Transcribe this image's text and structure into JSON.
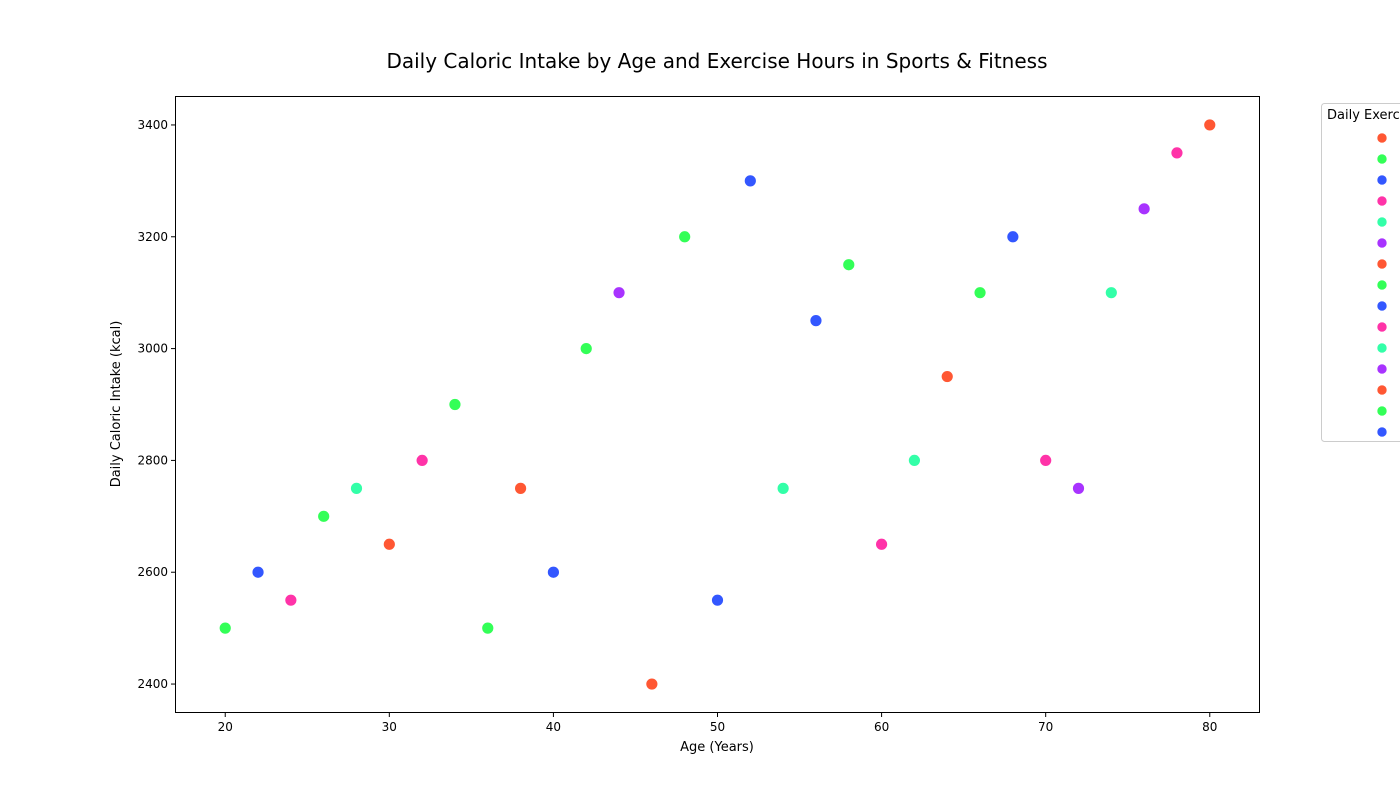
{
  "chart_data": {
    "type": "scatter",
    "title": "Daily Caloric Intake by Age and Exercise Hours in Sports & Fitness",
    "xlabel": "Age (Years)",
    "ylabel": "Daily Caloric Intake (kcal)",
    "xlim": [
      17,
      83
    ],
    "ylim": [
      2350,
      3450
    ],
    "xticks": [
      20,
      30,
      40,
      50,
      60,
      70,
      80
    ],
    "yticks": [
      2400,
      2600,
      2800,
      3000,
      3200,
      3400
    ],
    "grid": false,
    "legend": {
      "title": "Daily Exerc",
      "placement": "outside-right",
      "markers": 15
    },
    "palette": [
      "#ff5733",
      "#33ff57",
      "#3357ff",
      "#ff33a8",
      "#33ffa8",
      "#a833ff"
    ],
    "points": [
      {
        "x": 20,
        "y": 2500,
        "color": "#33ff57"
      },
      {
        "x": 22,
        "y": 2600,
        "color": "#3357ff"
      },
      {
        "x": 24,
        "y": 2550,
        "color": "#ff33a8"
      },
      {
        "x": 26,
        "y": 2700,
        "color": "#33ff57"
      },
      {
        "x": 28,
        "y": 2750,
        "color": "#33ffa8"
      },
      {
        "x": 30,
        "y": 2650,
        "color": "#ff5733"
      },
      {
        "x": 32,
        "y": 2800,
        "color": "#ff33a8"
      },
      {
        "x": 34,
        "y": 2900,
        "color": "#33ff57"
      },
      {
        "x": 36,
        "y": 2500,
        "color": "#33ff57"
      },
      {
        "x": 38,
        "y": 2750,
        "color": "#ff5733"
      },
      {
        "x": 40,
        "y": 2600,
        "color": "#3357ff"
      },
      {
        "x": 42,
        "y": 3000,
        "color": "#33ff57"
      },
      {
        "x": 44,
        "y": 3100,
        "color": "#a833ff"
      },
      {
        "x": 46,
        "y": 2400,
        "color": "#ff5733"
      },
      {
        "x": 48,
        "y": 3200,
        "color": "#33ff57"
      },
      {
        "x": 50,
        "y": 2550,
        "color": "#3357ff"
      },
      {
        "x": 52,
        "y": 3300,
        "color": "#3357ff"
      },
      {
        "x": 54,
        "y": 2750,
        "color": "#33ffa8"
      },
      {
        "x": 56,
        "y": 3050,
        "color": "#3357ff"
      },
      {
        "x": 58,
        "y": 3150,
        "color": "#33ff57"
      },
      {
        "x": 60,
        "y": 2650,
        "color": "#ff33a8"
      },
      {
        "x": 62,
        "y": 2800,
        "color": "#33ffa8"
      },
      {
        "x": 64,
        "y": 2950,
        "color": "#ff5733"
      },
      {
        "x": 66,
        "y": 3100,
        "color": "#33ff57"
      },
      {
        "x": 68,
        "y": 3200,
        "color": "#3357ff"
      },
      {
        "x": 70,
        "y": 2800,
        "color": "#ff33a8"
      },
      {
        "x": 72,
        "y": 2750,
        "color": "#a833ff"
      },
      {
        "x": 74,
        "y": 3100,
        "color": "#33ffa8"
      },
      {
        "x": 76,
        "y": 3250,
        "color": "#a833ff"
      },
      {
        "x": 78,
        "y": 3350,
        "color": "#ff33a8"
      },
      {
        "x": 80,
        "y": 3400,
        "color": "#ff5733"
      }
    ]
  }
}
